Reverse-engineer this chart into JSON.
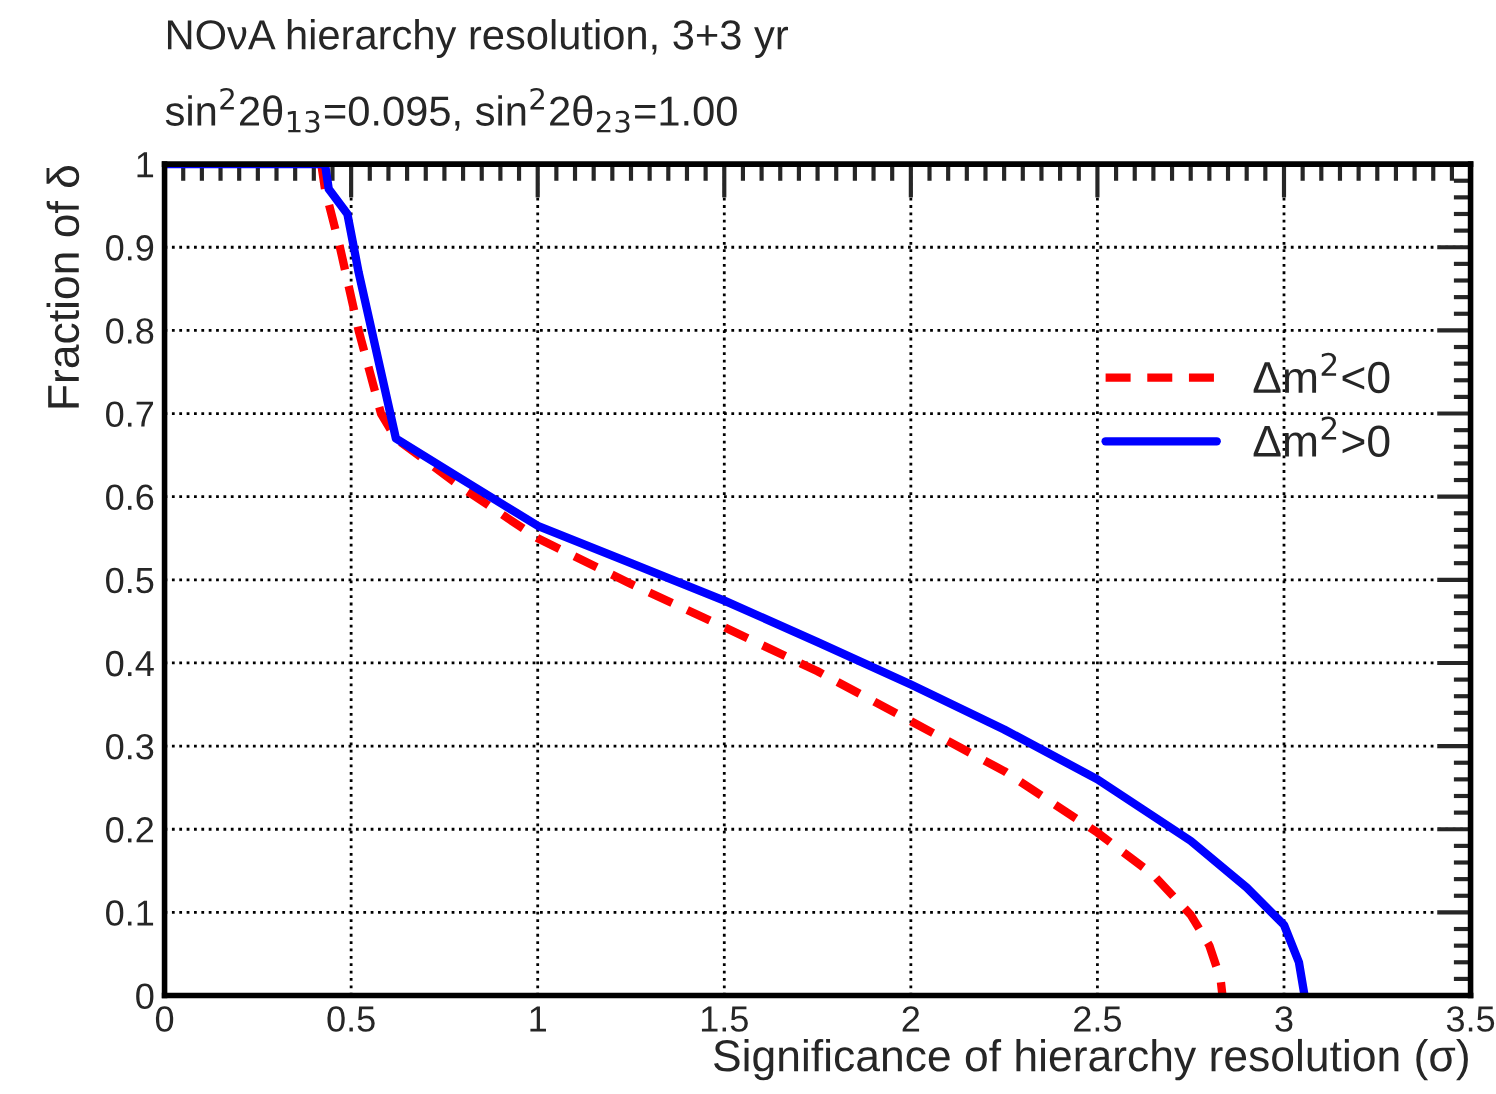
{
  "chart_data": {
    "type": "line",
    "title": "NOνA hierarchy resolution, 3+3 yr",
    "subtitle": "sin$^{2}$2θ$_{13}$=0.095, sin$^{2}$2θ$_{23}$=1.00",
    "xlabel": "Significance of hierarchy resolution (σ)",
    "ylabel": "Fraction of δ",
    "series": [
      {
        "name": "Δm$^{2}$<0",
        "color": "#ff0000",
        "line_style": "dashed",
        "x": [
          0.42,
          0.43,
          0.47,
          0.52,
          0.58,
          0.62,
          0.8,
          1.0,
          1.25,
          1.5,
          1.75,
          2.0,
          2.25,
          2.5,
          2.65,
          2.75,
          2.8,
          2.83,
          2.835
        ],
        "values": [
          1.0,
          0.97,
          0.9,
          0.8,
          0.7,
          0.67,
          0.61,
          0.55,
          0.495,
          0.443,
          0.39,
          0.33,
          0.27,
          0.196,
          0.145,
          0.097,
          0.06,
          0.02,
          0.0
        ]
      },
      {
        "name": "Δm$^{2}$>0",
        "color": "#0000ff",
        "line_style": "solid",
        "x": [
          0.0,
          0.43,
          0.44,
          0.49,
          0.52,
          0.62,
          0.8,
          1.0,
          1.25,
          1.5,
          1.75,
          2.0,
          2.25,
          2.5,
          2.75,
          2.9,
          3.0,
          3.04,
          3.055
        ],
        "values": [
          1.0,
          1.0,
          0.97,
          0.94,
          0.87,
          0.67,
          0.62,
          0.565,
          0.52,
          0.475,
          0.425,
          0.374,
          0.32,
          0.26,
          0.186,
          0.13,
          0.085,
          0.04,
          0.0
        ]
      }
    ],
    "xlim": [
      0,
      3.5
    ],
    "xticks": [
      0,
      0.5,
      1,
      1.5,
      2,
      2.5,
      3,
      3.5
    ],
    "ylim": [
      0,
      1
    ],
    "yticks": [
      0,
      0.1,
      0.2,
      0.3,
      0.4,
      0.5,
      0.6,
      0.7,
      0.8,
      0.9,
      1
    ],
    "grid": true,
    "legend": "right",
    "marker": "none"
  }
}
